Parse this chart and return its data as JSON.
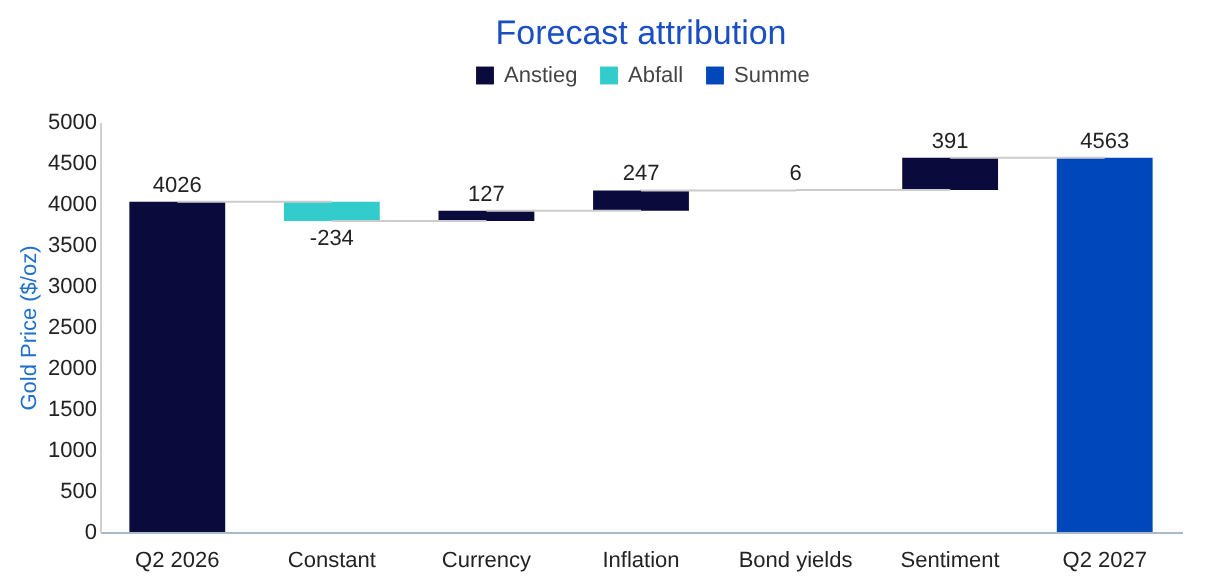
{
  "chart_data": {
    "type": "bar",
    "title": "Forecast attribution",
    "ylabel": "Gold Price ($/oz)",
    "categories": [
      "Q2 2026",
      "Constant",
      "Currency",
      "Inflation",
      "Bond yields",
      "Sentiment",
      "Q2 2027"
    ],
    "series": [
      {
        "name": "Anstieg",
        "color": "#0a0a3c",
        "values": [
          4026,
          null,
          127,
          247,
          6,
          391,
          null
        ],
        "base": [
          0,
          null,
          3792,
          3919,
          4166,
          4172,
          null
        ]
      },
      {
        "name": "Abfall",
        "color": "#33cccc",
        "values": [
          null,
          -234,
          null,
          null,
          null,
          null,
          null
        ],
        "base": [
          null,
          4026,
          null,
          null,
          null,
          null,
          null
        ]
      },
      {
        "name": "Summe",
        "color": "#0047bb",
        "values": [
          null,
          null,
          null,
          null,
          null,
          null,
          4563
        ],
        "base": [
          null,
          null,
          null,
          null,
          null,
          null,
          0
        ]
      }
    ],
    "ylim": [
      0,
      5000
    ],
    "yticks": [
      0,
      500,
      1000,
      1500,
      2000,
      2500,
      3000,
      3500,
      4000,
      4500,
      5000
    ],
    "data_labels": true,
    "legend": "top"
  }
}
